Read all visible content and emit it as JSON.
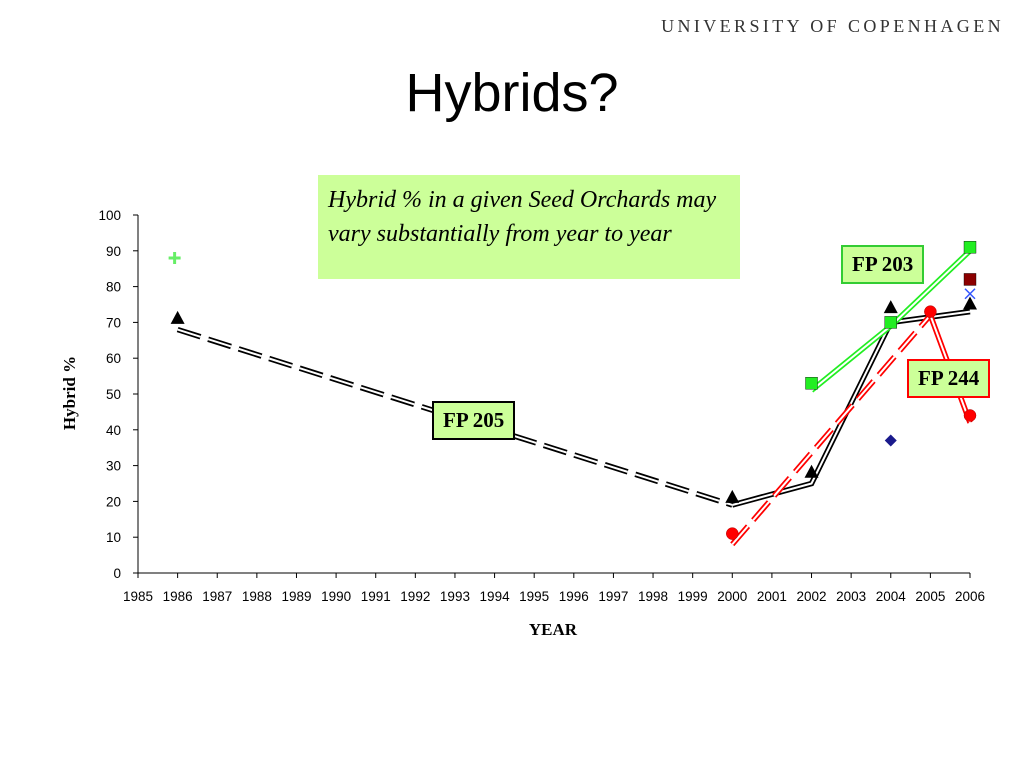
{
  "header": {
    "logo_text": "UNIVERSITY OF COPENHAGEN"
  },
  "slide": {
    "title": "Hybrids?"
  },
  "note": {
    "text": "Hybrid % in a given Seed Orchards may vary substantially from year to year"
  },
  "labels": {
    "fp205": "FP 205",
    "fp203": "FP 203",
    "fp244": "FP 244"
  },
  "colors": {
    "fp205": "#000000",
    "fp203": "#22ee22",
    "fp244": "#ff0000",
    "note_bg": "#ccff99",
    "dark_red": "#8b0000",
    "navy": "#1a1a8c",
    "light_green": "#66ee66",
    "blue": "#3355ff"
  },
  "chart_data": {
    "type": "scatter",
    "title": "",
    "xlabel": "YEAR",
    "ylabel": "Hybrid %",
    "xlim": [
      1985,
      2006
    ],
    "ylim": [
      0,
      100
    ],
    "x_ticks": [
      1985,
      1986,
      1987,
      1988,
      1989,
      1990,
      1991,
      1992,
      1993,
      1994,
      1995,
      1996,
      1997,
      1998,
      1999,
      2000,
      2001,
      2002,
      2003,
      2004,
      2005,
      2006
    ],
    "y_ticks": [
      0,
      10,
      20,
      30,
      40,
      50,
      60,
      70,
      80,
      90,
      100
    ],
    "grid": false,
    "legend": "none",
    "series": [
      {
        "name": "FP 205",
        "marker": "triangle",
        "color": "#000000",
        "points": [
          [
            1986,
            71
          ],
          [
            2000,
            21
          ],
          [
            2002,
            28
          ],
          [
            2004,
            74
          ],
          [
            2006,
            75
          ]
        ]
      },
      {
        "name": "FP 203",
        "marker": "square",
        "color": "#22ee22",
        "points": [
          [
            2002,
            53
          ],
          [
            2004,
            70
          ],
          [
            2006,
            91
          ]
        ]
      },
      {
        "name": "FP 244",
        "marker": "circle",
        "color": "#ff0000",
        "points": [
          [
            2000,
            11
          ],
          [
            2005,
            73
          ],
          [
            2006,
            44
          ]
        ]
      },
      {
        "marker": "cross",
        "color": "#66ee66",
        "points": [
          [
            1986,
            88
          ]
        ]
      },
      {
        "marker": "square",
        "color": "#8b0000",
        "points": [
          [
            2006,
            82
          ]
        ]
      },
      {
        "marker": "diamond",
        "color": "#1a1a8c",
        "points": [
          [
            2004,
            37
          ]
        ]
      },
      {
        "marker": "x",
        "color": "#3355ff",
        "points": [
          [
            2006,
            78
          ]
        ]
      }
    ],
    "trend_lines": [
      {
        "series": "FP 205",
        "color": "#000000",
        "style": "dashed-double",
        "points": [
          [
            1986,
            68
          ],
          [
            2000,
            19
          ]
        ]
      },
      {
        "series": "FP 205",
        "color": "#000000",
        "style": "solid-double",
        "points": [
          [
            2000,
            19
          ],
          [
            2002,
            25
          ],
          [
            2004,
            70
          ],
          [
            2006,
            73
          ]
        ]
      },
      {
        "series": "FP 203",
        "color": "#22ee22",
        "style": "solid-double",
        "points": [
          [
            2002,
            51
          ],
          [
            2004,
            69
          ],
          [
            2006,
            90
          ]
        ]
      },
      {
        "series": "FP 244",
        "color": "#ff0000",
        "style": "dashed-double",
        "points": [
          [
            2000,
            8
          ],
          [
            2005,
            72
          ]
        ]
      },
      {
        "series": "FP 244",
        "color": "#ff0000",
        "style": "solid-double",
        "points": [
          [
            2005,
            72
          ],
          [
            2006,
            42
          ]
        ]
      }
    ]
  }
}
